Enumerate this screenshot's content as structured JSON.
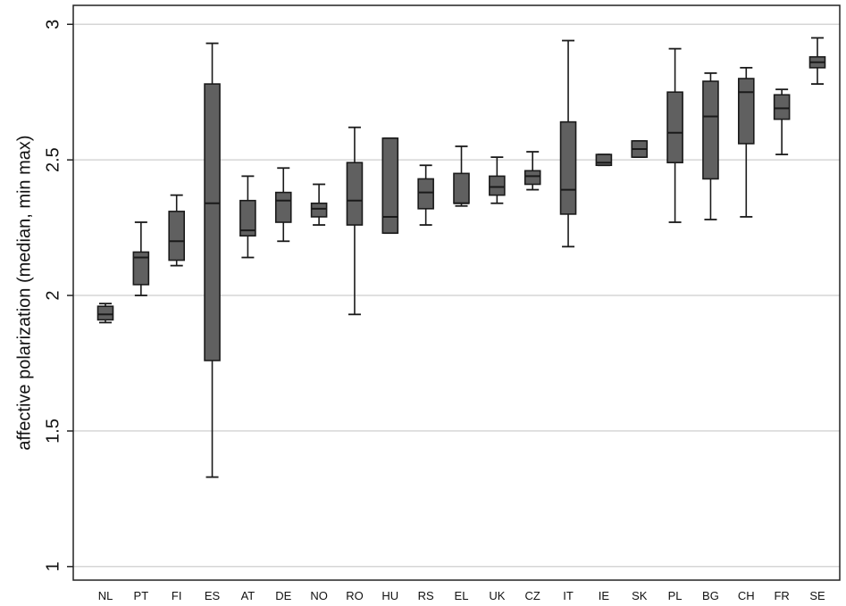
{
  "chart_data": {
    "type": "boxplot",
    "ylabel": "affective polarization (median, min max)",
    "xlabel": "",
    "title": "",
    "ylim": [
      0.95,
      3.07
    ],
    "y_ticks": [
      1,
      1.5,
      2,
      2.5,
      3
    ],
    "y_tick_labels": [
      "1",
      "1.5",
      "2",
      "2.5",
      "3"
    ],
    "grid": true,
    "box_color": "#606060",
    "categories": [
      "NL",
      "PT",
      "FI",
      "ES",
      "AT",
      "DE",
      "NO",
      "RO",
      "HU",
      "RS",
      "EL",
      "UK",
      "CZ",
      "IT",
      "IE",
      "SK",
      "PL",
      "BG",
      "CH",
      "FR",
      "SE"
    ],
    "boxes": [
      {
        "min": 1.9,
        "q1": 1.91,
        "median": 1.93,
        "q3": 1.96,
        "max": 1.97
      },
      {
        "min": 2.0,
        "q1": 2.04,
        "median": 2.14,
        "q3": 2.16,
        "max": 2.27
      },
      {
        "min": 2.11,
        "q1": 2.13,
        "median": 2.2,
        "q3": 2.31,
        "max": 2.37
      },
      {
        "min": 1.33,
        "q1": 1.76,
        "median": 2.34,
        "q3": 2.78,
        "max": 2.93
      },
      {
        "min": 2.14,
        "q1": 2.22,
        "median": 2.24,
        "q3": 2.35,
        "max": 2.44
      },
      {
        "min": 2.2,
        "q1": 2.27,
        "median": 2.35,
        "q3": 2.38,
        "max": 2.47
      },
      {
        "min": 2.26,
        "q1": 2.29,
        "median": 2.32,
        "q3": 2.34,
        "max": 2.41
      },
      {
        "min": 1.93,
        "q1": 2.26,
        "median": 2.35,
        "q3": 2.49,
        "max": 2.62
      },
      {
        "min": 2.23,
        "q1": 2.23,
        "median": 2.29,
        "q3": 2.58,
        "max": 2.58
      },
      {
        "min": 2.26,
        "q1": 2.32,
        "median": 2.38,
        "q3": 2.43,
        "max": 2.48
      },
      {
        "min": 2.33,
        "q1": 2.34,
        "median": 2.34,
        "q3": 2.45,
        "max": 2.55
      },
      {
        "min": 2.34,
        "q1": 2.37,
        "median": 2.4,
        "q3": 2.44,
        "max": 2.51
      },
      {
        "min": 2.39,
        "q1": 2.41,
        "median": 2.44,
        "q3": 2.46,
        "max": 2.53
      },
      {
        "min": 2.18,
        "q1": 2.3,
        "median": 2.39,
        "q3": 2.64,
        "max": 2.94
      },
      {
        "min": 2.48,
        "q1": 2.48,
        "median": 2.49,
        "q3": 2.52,
        "max": 2.52
      },
      {
        "min": 2.51,
        "q1": 2.51,
        "median": 2.54,
        "q3": 2.57,
        "max": 2.57
      },
      {
        "min": 2.27,
        "q1": 2.49,
        "median": 2.6,
        "q3": 2.75,
        "max": 2.91
      },
      {
        "min": 2.28,
        "q1": 2.43,
        "median": 2.66,
        "q3": 2.79,
        "max": 2.82
      },
      {
        "min": 2.29,
        "q1": 2.56,
        "median": 2.75,
        "q3": 2.8,
        "max": 2.84
      },
      {
        "min": 2.52,
        "q1": 2.65,
        "median": 2.69,
        "q3": 2.74,
        "max": 2.76
      },
      {
        "min": 2.78,
        "q1": 2.84,
        "median": 2.86,
        "q3": 2.88,
        "max": 2.95
      }
    ]
  }
}
